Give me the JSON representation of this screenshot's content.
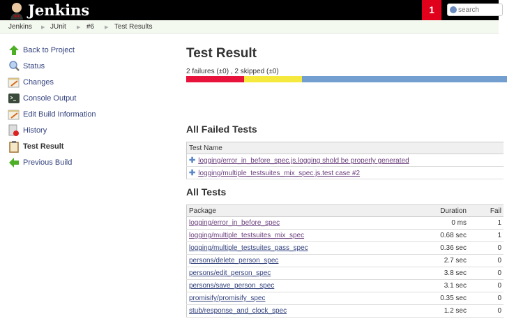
{
  "header": {
    "brand": "Jenkins",
    "notification_count": "1",
    "search_placeholder": "search"
  },
  "breadcrumb": [
    "Jenkins",
    "JUnit",
    "#6",
    "Test Results"
  ],
  "sidebar": {
    "items": [
      {
        "label": "Back to Project",
        "icon": "arrow-up-icon"
      },
      {
        "label": "Status",
        "icon": "magnifier-icon"
      },
      {
        "label": "Changes",
        "icon": "notepad-icon"
      },
      {
        "label": "Console Output",
        "icon": "terminal-icon"
      },
      {
        "label": "Edit Build Information",
        "icon": "notepad-icon"
      },
      {
        "label": "History",
        "icon": "history-icon"
      },
      {
        "label": "Test Result",
        "icon": "clipboard-icon",
        "active": true
      },
      {
        "label": "Previous Build",
        "icon": "arrow-left-icon"
      }
    ]
  },
  "main": {
    "title": "Test Result",
    "summary": "2 failures (±0) , 2 skipped (±0)",
    "progress": {
      "fail_pct": 18,
      "skip_pct": 18,
      "pass_pct": 64,
      "colors": {
        "fail": "#e8133a",
        "skip": "#f6e93d",
        "pass": "#729fcf"
      }
    },
    "failed": {
      "title": "All Failed Tests",
      "header": "Test Name",
      "rows": [
        "logging/error_in_before_spec.js.logging shold be properly generated",
        "logging/multiple_testsuites_mix_spec.js.test case #2"
      ]
    },
    "all": {
      "title": "All Tests",
      "headers": [
        "Package",
        "Duration",
        "Fail"
      ],
      "rows": [
        [
          "logging/error_in_before_spec",
          "0 ms",
          "1"
        ],
        [
          "logging/multiple_testsuites_mix_spec",
          "0.68 sec",
          "1"
        ],
        [
          "logging/multiple_testsuites_pass_spec",
          "0.36 sec",
          "0"
        ],
        [
          "persons/delete_person_spec",
          "2.7 sec",
          "0"
        ],
        [
          "persons/edit_person_spec",
          "3.8 sec",
          "0"
        ],
        [
          "persons/save_person_spec",
          "3.1 sec",
          "0"
        ],
        [
          "promisify/promisify_spec",
          "0.35 sec",
          "0"
        ],
        [
          "stub/response_and_clock_spec",
          "1.2 sec",
          "0"
        ]
      ]
    }
  }
}
